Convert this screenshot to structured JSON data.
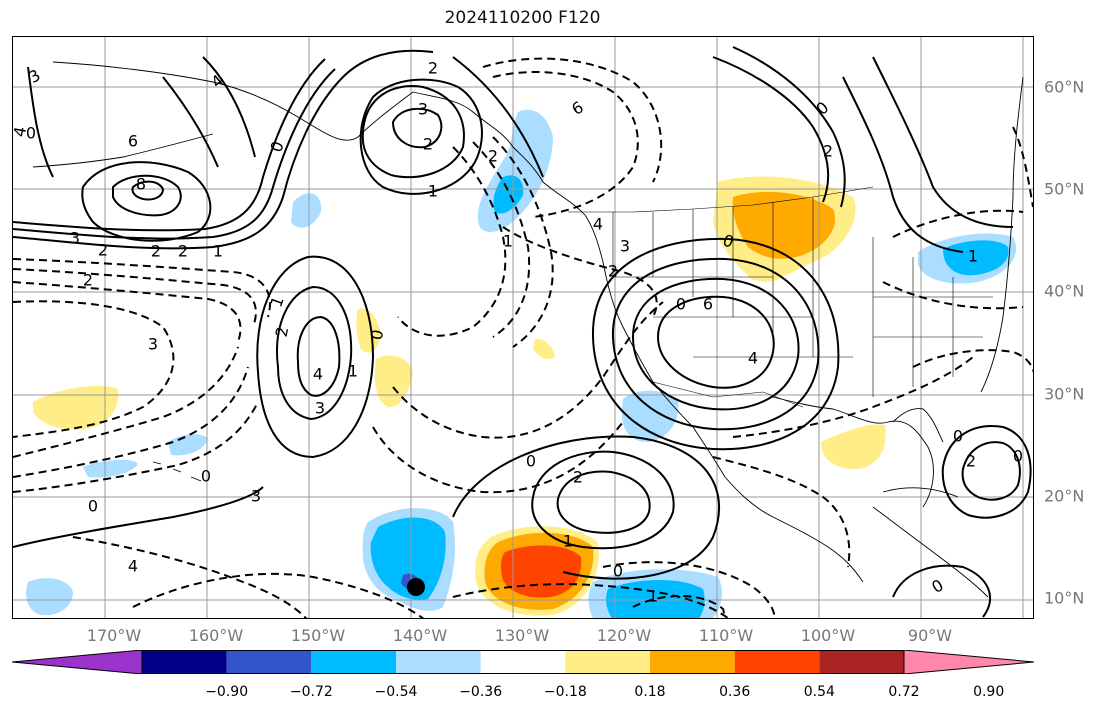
{
  "title": "2024110200 F120",
  "lat_labels": [
    "60°N",
    "50°N",
    "40°N",
    "30°N",
    "20°N",
    "10°N"
  ],
  "lon_labels": [
    "170°W",
    "160°W",
    "150°W",
    "140°W",
    "130°W",
    "120°W",
    "110°W",
    "100°W",
    "90°W"
  ],
  "colorbar": {
    "colors": [
      "#9933cc",
      "#000088",
      "#3355cc",
      "#00bbff",
      "#aaddff",
      "#ffffff",
      "#ffee88",
      "#ffaa00",
      "#ff4400",
      "#aa2222",
      "#ff88aa"
    ],
    "tick_labels": [
      "−0.90",
      "−0.72",
      "−0.54",
      "−0.36",
      "−0.18",
      "0.18",
      "0.36",
      "0.54",
      "0.72",
      "0.90"
    ]
  },
  "contour_labels": [
    "3",
    "4",
    "4",
    "6",
    "8",
    "3",
    "2",
    "2",
    "1",
    "2",
    "2",
    "3",
    "0",
    "2",
    "3",
    "2",
    "1",
    "6",
    "3",
    "2",
    "4",
    "2",
    "1",
    "0",
    "6",
    "4",
    "0",
    "3",
    "2",
    "1",
    "0",
    "1",
    "4",
    "3",
    "0",
    "0",
    "4",
    "2",
    "0",
    "1",
    "0",
    "1",
    "0",
    "0",
    "2",
    "0",
    "1",
    "0",
    "2",
    "0"
  ],
  "marker": {
    "name": "black dot"
  }
}
